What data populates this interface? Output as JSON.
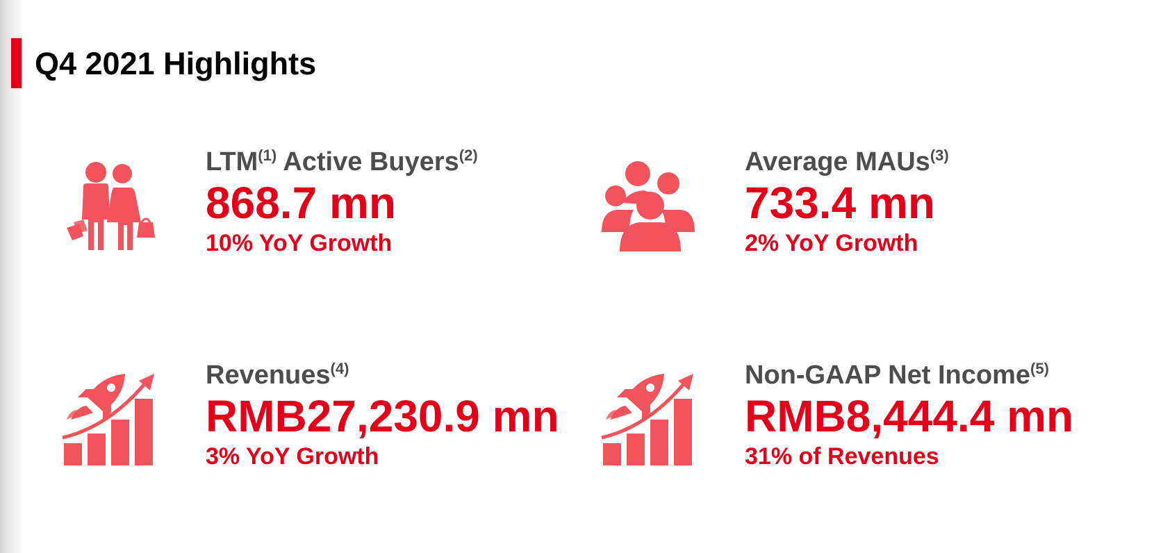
{
  "title": "Q4 2021 Highlights",
  "accent_color": "#e3001b",
  "icon_color": "#f0535b",
  "metrics": [
    {
      "icon": "shoppers-icon",
      "label": "Active Buyers",
      "label_prefix": "LTM",
      "label_prefix_note": "(1)",
      "label_note": "(2)",
      "value": "868.7 mn",
      "sub": "10% YoY Growth"
    },
    {
      "icon": "users-group-icon",
      "label": "Average MAUs",
      "label_note": "(3)",
      "value": "733.4 mn",
      "sub": "2% YoY Growth"
    },
    {
      "icon": "rocket-growth-chart-icon",
      "label": "Revenues",
      "label_note": "(4)",
      "value": "RMB27,230.9 mn",
      "sub": "3% YoY Growth"
    },
    {
      "icon": "rocket-growth-chart-icon",
      "label": "Non-GAAP Net Income",
      "label_note": "(5)",
      "value": "RMB8,444.4 mn",
      "sub": "31% of Revenues"
    }
  ]
}
